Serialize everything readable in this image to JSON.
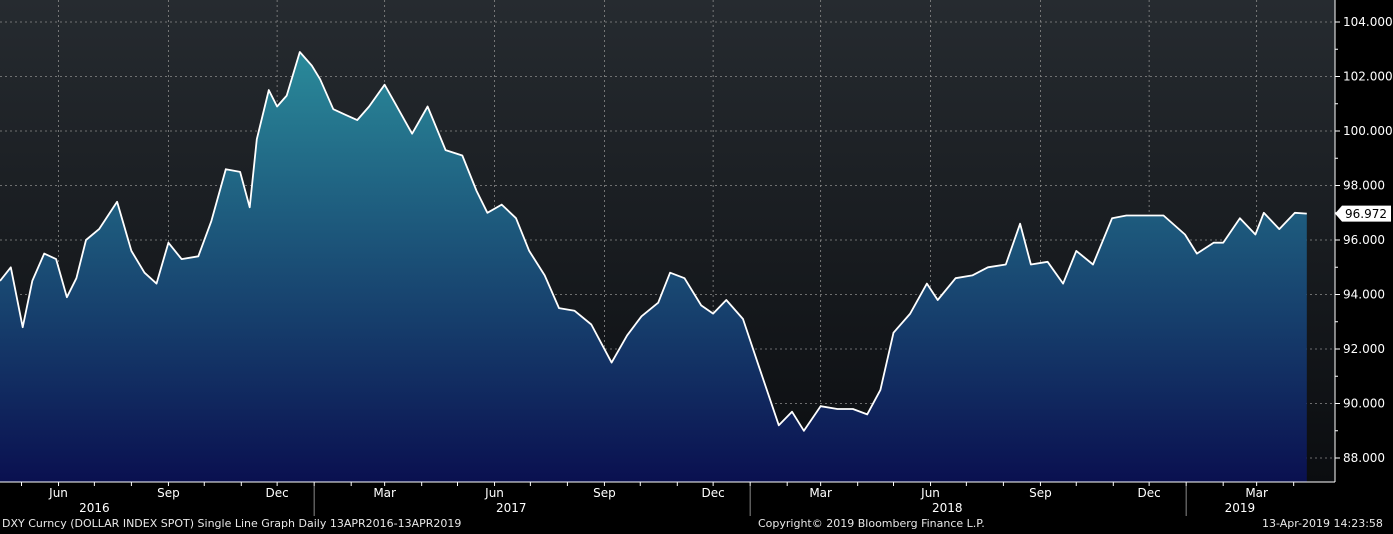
{
  "chart_data": {
    "type": "area",
    "ticker": "DXY Curncy",
    "ylim": [
      87.0,
      104.5
    ],
    "yticks": [
      "104.000",
      "102.000",
      "100.000",
      "98.000",
      "96.000",
      "94.000",
      "92.000",
      "90.000",
      "88.000"
    ],
    "yticks_values": [
      104,
      102,
      100,
      98,
      96,
      94,
      92,
      90,
      88
    ],
    "x_start": "2016-04-13",
    "x_end": "2019-04-13",
    "month_labels": [
      {
        "label": "Jun",
        "date": "2016-06-01"
      },
      {
        "label": "Sep",
        "date": "2016-09-01"
      },
      {
        "label": "Dec",
        "date": "2016-12-01"
      },
      {
        "label": "Mar",
        "date": "2017-03-01"
      },
      {
        "label": "Jun",
        "date": "2017-06-01"
      },
      {
        "label": "Sep",
        "date": "2017-09-01"
      },
      {
        "label": "Dec",
        "date": "2017-12-01"
      },
      {
        "label": "Mar",
        "date": "2018-03-01"
      },
      {
        "label": "Jun",
        "date": "2018-06-01"
      },
      {
        "label": "Sep",
        "date": "2018-09-01"
      },
      {
        "label": "Dec",
        "date": "2018-12-01"
      },
      {
        "label": "Mar",
        "date": "2019-03-01"
      }
    ],
    "year_labels": [
      {
        "label": "2016",
        "date": "2016-07-01"
      },
      {
        "label": "2017",
        "date": "2017-06-15"
      },
      {
        "label": "2018",
        "date": "2018-06-15"
      },
      {
        "label": "2019",
        "date": "2019-02-15"
      }
    ],
    "year_boundaries": [
      "2017-01-01",
      "2018-01-01",
      "2019-01-01"
    ],
    "last_value": "96.972",
    "series": [
      {
        "x": [
          "2016-04-13",
          "2016-04-22",
          "2016-05-02",
          "2016-05-10",
          "2016-05-20",
          "2016-05-30",
          "2016-06-08",
          "2016-06-16",
          "2016-06-24",
          "2016-07-05",
          "2016-07-20",
          "2016-08-01",
          "2016-08-12",
          "2016-08-22",
          "2016-09-01",
          "2016-09-12",
          "2016-09-26",
          "2016-10-07",
          "2016-10-19",
          "2016-10-31",
          "2016-11-08",
          "2016-11-14",
          "2016-11-24",
          "2016-12-01",
          "2016-12-09",
          "2016-12-20",
          "2016-12-30",
          "2017-01-06",
          "2017-01-17",
          "2017-01-27",
          "2017-02-06",
          "2017-02-16",
          "2017-03-01",
          "2017-03-10",
          "2017-03-24",
          "2017-04-06",
          "2017-04-21",
          "2017-05-05",
          "2017-05-17",
          "2017-05-26",
          "2017-06-07",
          "2017-06-19",
          "2017-06-30",
          "2017-07-13",
          "2017-07-25",
          "2017-08-07",
          "2017-08-21",
          "2017-09-07",
          "2017-09-20",
          "2017-10-02",
          "2017-10-16",
          "2017-10-26",
          "2017-11-07",
          "2017-11-21",
          "2017-12-01",
          "2017-12-12",
          "2017-12-26",
          "2018-01-08",
          "2018-01-25",
          "2018-02-05",
          "2018-02-15",
          "2018-03-01",
          "2018-03-15",
          "2018-03-28",
          "2018-04-09",
          "2018-04-20",
          "2018-05-01",
          "2018-05-15",
          "2018-05-29",
          "2018-06-07",
          "2018-06-22",
          "2018-07-06",
          "2018-07-19",
          "2018-08-03",
          "2018-08-15",
          "2018-08-24",
          "2018-09-07",
          "2018-09-20",
          "2018-10-01",
          "2018-10-15",
          "2018-10-31",
          "2018-11-12",
          "2018-11-26",
          "2018-12-13",
          "2018-12-31",
          "2019-01-10",
          "2019-01-24",
          "2019-02-01",
          "2019-02-15",
          "2019-02-28",
          "2019-03-07",
          "2019-03-20",
          "2019-04-02",
          "2019-04-12"
        ],
        "values": [
          94.5,
          95.0,
          92.8,
          94.5,
          95.5,
          95.3,
          93.9,
          94.6,
          96.0,
          96.4,
          97.4,
          95.6,
          94.8,
          94.4,
          95.9,
          95.3,
          95.4,
          96.7,
          98.6,
          98.5,
          97.2,
          99.7,
          101.5,
          100.9,
          101.3,
          102.9,
          102.4,
          101.9,
          100.8,
          100.6,
          100.4,
          100.9,
          101.7,
          101.0,
          99.9,
          100.9,
          99.3,
          99.1,
          97.8,
          97.0,
          97.3,
          96.8,
          95.6,
          94.7,
          93.5,
          93.4,
          92.9,
          91.5,
          92.5,
          93.2,
          93.7,
          94.8,
          94.6,
          93.6,
          93.3,
          93.8,
          93.1,
          91.4,
          89.2,
          89.7,
          89.0,
          89.9,
          89.8,
          89.8,
          89.6,
          90.5,
          92.6,
          93.3,
          94.4,
          93.8,
          94.6,
          94.7,
          95.0,
          95.1,
          96.6,
          95.1,
          95.2,
          94.4,
          95.6,
          95.1,
          96.8,
          96.9,
          96.9,
          96.9,
          96.2,
          95.5,
          95.9,
          95.9,
          96.8,
          96.2,
          97.0,
          96.4,
          97.0,
          96.97
        ]
      }
    ]
  },
  "footer": {
    "left": "DXY Curncy (DOLLAR INDEX SPOT) Single Line Graph  Daily 13APR2016-13APR2019",
    "center": "Copyright© 2019 Bloomberg Finance L.P.",
    "right": "13-Apr-2019 14:23:58"
  },
  "colors": {
    "background_top": "#262b30",
    "background_bottom": "#0b0d10",
    "fill_top": "#2a8a9a",
    "fill_bottom": "#0a1050",
    "line": "#ffffff",
    "grid": "#8a8a8a",
    "text": "#ffffff"
  }
}
